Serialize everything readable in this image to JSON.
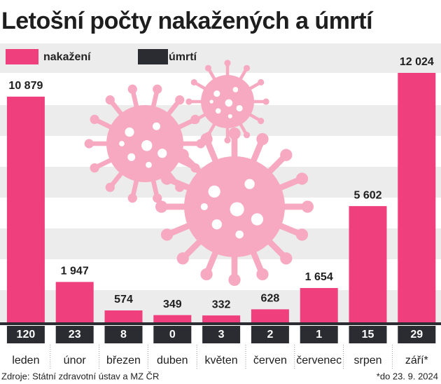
{
  "chart_data": {
    "type": "bar",
    "title": "Letošní počty nakažených a úmrtí",
    "categories": [
      "leden",
      "únor",
      "březen",
      "duben",
      "květen",
      "červen",
      "červenec",
      "srpen",
      "září*"
    ],
    "series": [
      {
        "name": "nakažení",
        "color": "#ef3f7d",
        "values": [
          10879,
          1947,
          574,
          349,
          332,
          628,
          1654,
          5602,
          12024
        ],
        "value_labels": [
          "10 879",
          "1 947",
          "574",
          "349",
          "332",
          "628",
          "1 654",
          "5 602",
          "12 024"
        ]
      },
      {
        "name": "úmrtí",
        "color": "#2a2c31",
        "values": [
          120,
          23,
          8,
          0,
          3,
          2,
          1,
          15,
          29
        ]
      }
    ],
    "source": "Zdroje: Státní zdravotní ústav a MZ ČR",
    "note": "*do 23. 9. 2024"
  }
}
